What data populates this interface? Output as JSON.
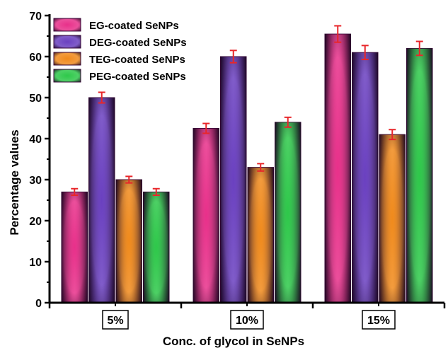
{
  "chart_data": {
    "type": "bar",
    "categories": [
      "5%",
      "10%",
      "15%"
    ],
    "series": [
      {
        "name": "EG-coated SeNPs",
        "values": [
          27,
          42.5,
          65.5
        ],
        "errors": [
          0.8,
          1.2,
          2.0
        ],
        "color": "#e8308a"
      },
      {
        "name": "DEG-coated SeNPs",
        "values": [
          50,
          60,
          61
        ],
        "errors": [
          1.3,
          1.5,
          1.7
        ],
        "color": "#6a40c0"
      },
      {
        "name": "TEG-coated SeNPs",
        "values": [
          30,
          33,
          41
        ],
        "errors": [
          0.8,
          0.9,
          1.2
        ],
        "color": "#f08a1c"
      },
      {
        "name": "PEG-coated SeNPs",
        "values": [
          27,
          44,
          62
        ],
        "errors": [
          0.8,
          1.2,
          1.7
        ],
        "color": "#2ec84a"
      }
    ],
    "xlabel": "Conc. of glycol in SeNPs",
    "ylabel": "Percentage values",
    "ylim": [
      0,
      70
    ],
    "yticks": [
      "0",
      "10",
      "20",
      "30",
      "40",
      "50",
      "60",
      "70"
    ],
    "error_bar_color": "#e8262a",
    "legend_position": "top-left"
  }
}
